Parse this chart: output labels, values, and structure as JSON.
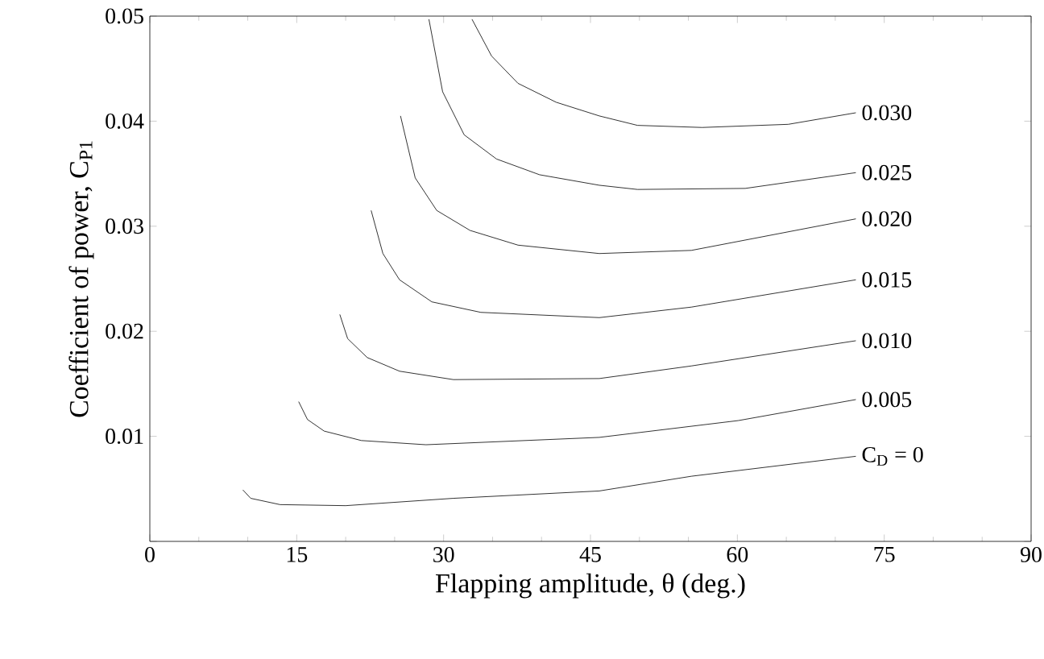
{
  "chart_data": {
    "type": "line",
    "xlabel": "Flapping amplitude, θ (deg.)",
    "ylabel": "Coefficient of power, C$_{P1}$",
    "xlim": [
      0,
      90
    ],
    "ylim": [
      0,
      0.05
    ],
    "xticks": [
      0,
      15,
      30,
      45,
      60,
      75,
      90
    ],
    "yticks": [
      {
        "value": 0,
        "label": null
      },
      0.01,
      0.02,
      0.03,
      0.04,
      0.05
    ],
    "grid": false,
    "legend": false,
    "marker": "none",
    "line_style": "solid",
    "series": [
      {
        "name": "C$_{D}$ = 0",
        "color": "#000000",
        "x": [
          9.5,
          10.3,
          13.3,
          20,
          31,
          45.9,
          55.3,
          72.1
        ],
        "values": [
          0.0049,
          0.0041,
          0.0035,
          0.0034,
          0.0041,
          0.0048,
          0.0062,
          0.0081
        ]
      },
      {
        "name": "0.005",
        "color": "#000000",
        "x": [
          15.2,
          16.1,
          17.8,
          21.6,
          28.2,
          45.9,
          60.1,
          72.1
        ],
        "values": [
          0.0133,
          0.0116,
          0.0105,
          0.0096,
          0.0092,
          0.0099,
          0.0115,
          0.0135
        ]
      },
      {
        "name": "0.010",
        "color": "#000000",
        "x": [
          19.4,
          20.2,
          22.2,
          25.5,
          31,
          45.9,
          55.3,
          72.1
        ],
        "values": [
          0.0216,
          0.0193,
          0.0175,
          0.0162,
          0.0154,
          0.0155,
          0.0167,
          0.0191
        ]
      },
      {
        "name": "0.015",
        "color": "#000000",
        "x": [
          22.6,
          23.8,
          25.5,
          28.8,
          33.8,
          45.9,
          55.3,
          72.1
        ],
        "values": [
          0.0315,
          0.0274,
          0.0249,
          0.0228,
          0.0218,
          0.0213,
          0.0223,
          0.0249
        ]
      },
      {
        "name": "0.020",
        "color": "#000000",
        "x": [
          25.6,
          27.1,
          29.3,
          32.7,
          37.6,
          45.9,
          55.3,
          72.1
        ],
        "values": [
          0.0405,
          0.0346,
          0.0315,
          0.0296,
          0.0282,
          0.0274,
          0.0277,
          0.0307
        ]
      },
      {
        "name": "0.025",
        "color": "#000000",
        "x": [
          28.5,
          29.9,
          32.1,
          35.4,
          39.8,
          45.9,
          49.8,
          60.8,
          72.1
        ],
        "values": [
          0.0497,
          0.0428,
          0.0387,
          0.0364,
          0.0349,
          0.0339,
          0.0335,
          0.0336,
          0.0351
        ]
      },
      {
        "name": "0.030",
        "color": "#000000",
        "x": [
          32.9,
          34.9,
          37.6,
          41.5,
          45.9,
          49.8,
          56.4,
          65.2,
          72.1
        ],
        "values": [
          0.0497,
          0.0462,
          0.0436,
          0.0418,
          0.0405,
          0.0396,
          0.0394,
          0.0397,
          0.0408
        ]
      }
    ]
  }
}
